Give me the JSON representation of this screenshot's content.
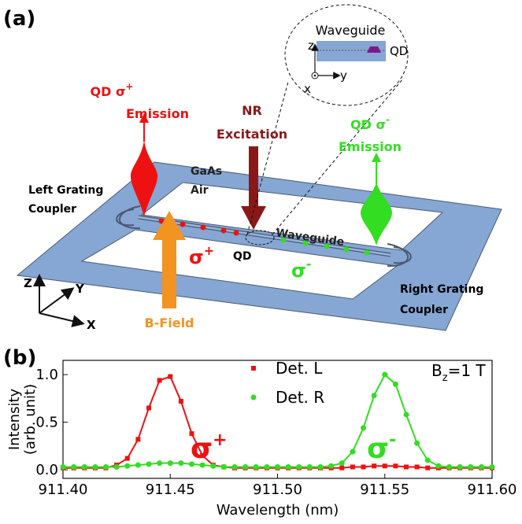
{
  "panel_a": {
    "label": "(a)",
    "inset": {
      "title": "Waveguide",
      "z": "z",
      "y": "y",
      "x": "x",
      "qd": "QD"
    },
    "left_emission": {
      "line1": "QD σ",
      "sup": "+",
      "line2": "Emission"
    },
    "excitation": {
      "line1": "NR",
      "line2": "Excitation"
    },
    "right_emission": {
      "line1": "QD σ",
      "sup": "-",
      "line2": "Emission"
    },
    "gaas": "GaAs",
    "air": "Air",
    "left_coupler": [
      "Left Grating",
      "Coupler"
    ],
    "right_coupler": [
      "Right Grating",
      "Coupler"
    ],
    "waveguide": "Waveguide",
    "sigma_plus": {
      "base": "σ",
      "sup": "+"
    },
    "sigma_minus": {
      "base": "σ",
      "sup": "-"
    },
    "qd": "QD",
    "axes": {
      "z": "Z",
      "y": "Y",
      "x": "X"
    },
    "b_field": "B-Field"
  },
  "chart_data": {
    "type": "scatter",
    "panel_label": "(b)",
    "xlabel": "Wavelength (nm)",
    "ylabel": [
      "Intensity",
      "(arb. unit)"
    ],
    "xlim": [
      911.4,
      911.6
    ],
    "xticks": [
      {
        "value": 911.4,
        "label": "911.40"
      },
      {
        "value": 911.45,
        "label": "911.45"
      },
      {
        "value": 911.5,
        "label": "911.50"
      },
      {
        "value": 911.55,
        "label": "911.55"
      },
      {
        "value": 911.6,
        "label": "911.60"
      }
    ],
    "ylim": [
      -0.09,
      1.15
    ],
    "yticks": [
      {
        "value": 0,
        "label": "0.0"
      },
      {
        "value": 0.5,
        "label": "0.5"
      },
      {
        "value": 1,
        "label": "1.0"
      }
    ],
    "legend": "top",
    "x": [
      911.4,
      911.405,
      911.41,
      911.415,
      911.42,
      911.425,
      911.43,
      911.435,
      911.44,
      911.445,
      911.45,
      911.455,
      911.46,
      911.465,
      911.47,
      911.475,
      911.48,
      911.485,
      911.49,
      911.495,
      911.5,
      911.505,
      911.51,
      911.515,
      911.52,
      911.525,
      911.53,
      911.535,
      911.54,
      911.545,
      911.55,
      911.555,
      911.56,
      911.565,
      911.57,
      911.575,
      911.58,
      911.585,
      911.59,
      911.595,
      911.6
    ],
    "series": [
      {
        "name": "Det. L",
        "color": "#ee1111",
        "marker": "square",
        "values": [
          0.02,
          0.02,
          0.02,
          0.02,
          0.02,
          0.05,
          0.12,
          0.32,
          0.65,
          0.94,
          0.98,
          0.72,
          0.38,
          0.15,
          0.05,
          0.03,
          0.02,
          0.02,
          0.02,
          0.02,
          0.02,
          0.02,
          0.02,
          0.02,
          0.02,
          0.02,
          0.02,
          0.03,
          0.03,
          0.04,
          0.04,
          0.04,
          0.03,
          0.03,
          0.02,
          0.02,
          0.02,
          0.02,
          0.02,
          0.02,
          0.02
        ]
      },
      {
        "name": "Det. R",
        "color": "#33dd22",
        "marker": "circle",
        "values": [
          0.03,
          0.03,
          0.03,
          0.03,
          0.03,
          0.03,
          0.04,
          0.05,
          0.06,
          0.07,
          0.07,
          0.07,
          0.06,
          0.05,
          0.04,
          0.03,
          0.03,
          0.03,
          0.03,
          0.03,
          0.03,
          0.03,
          0.03,
          0.03,
          0.03,
          0.04,
          0.07,
          0.19,
          0.44,
          0.78,
          1.0,
          0.9,
          0.58,
          0.28,
          0.1,
          0.04,
          0.03,
          0.03,
          0.03,
          0.03,
          0.03
        ]
      }
    ],
    "annotations": {
      "field": {
        "base": "B",
        "sub": "z",
        "rest": "=1 T"
      },
      "sigma_plus": {
        "base": "σ",
        "sup": "+",
        "color": "#ee1111"
      },
      "sigma_minus": {
        "base": "σ",
        "sup": "-",
        "color": "#33dd22"
      }
    }
  }
}
